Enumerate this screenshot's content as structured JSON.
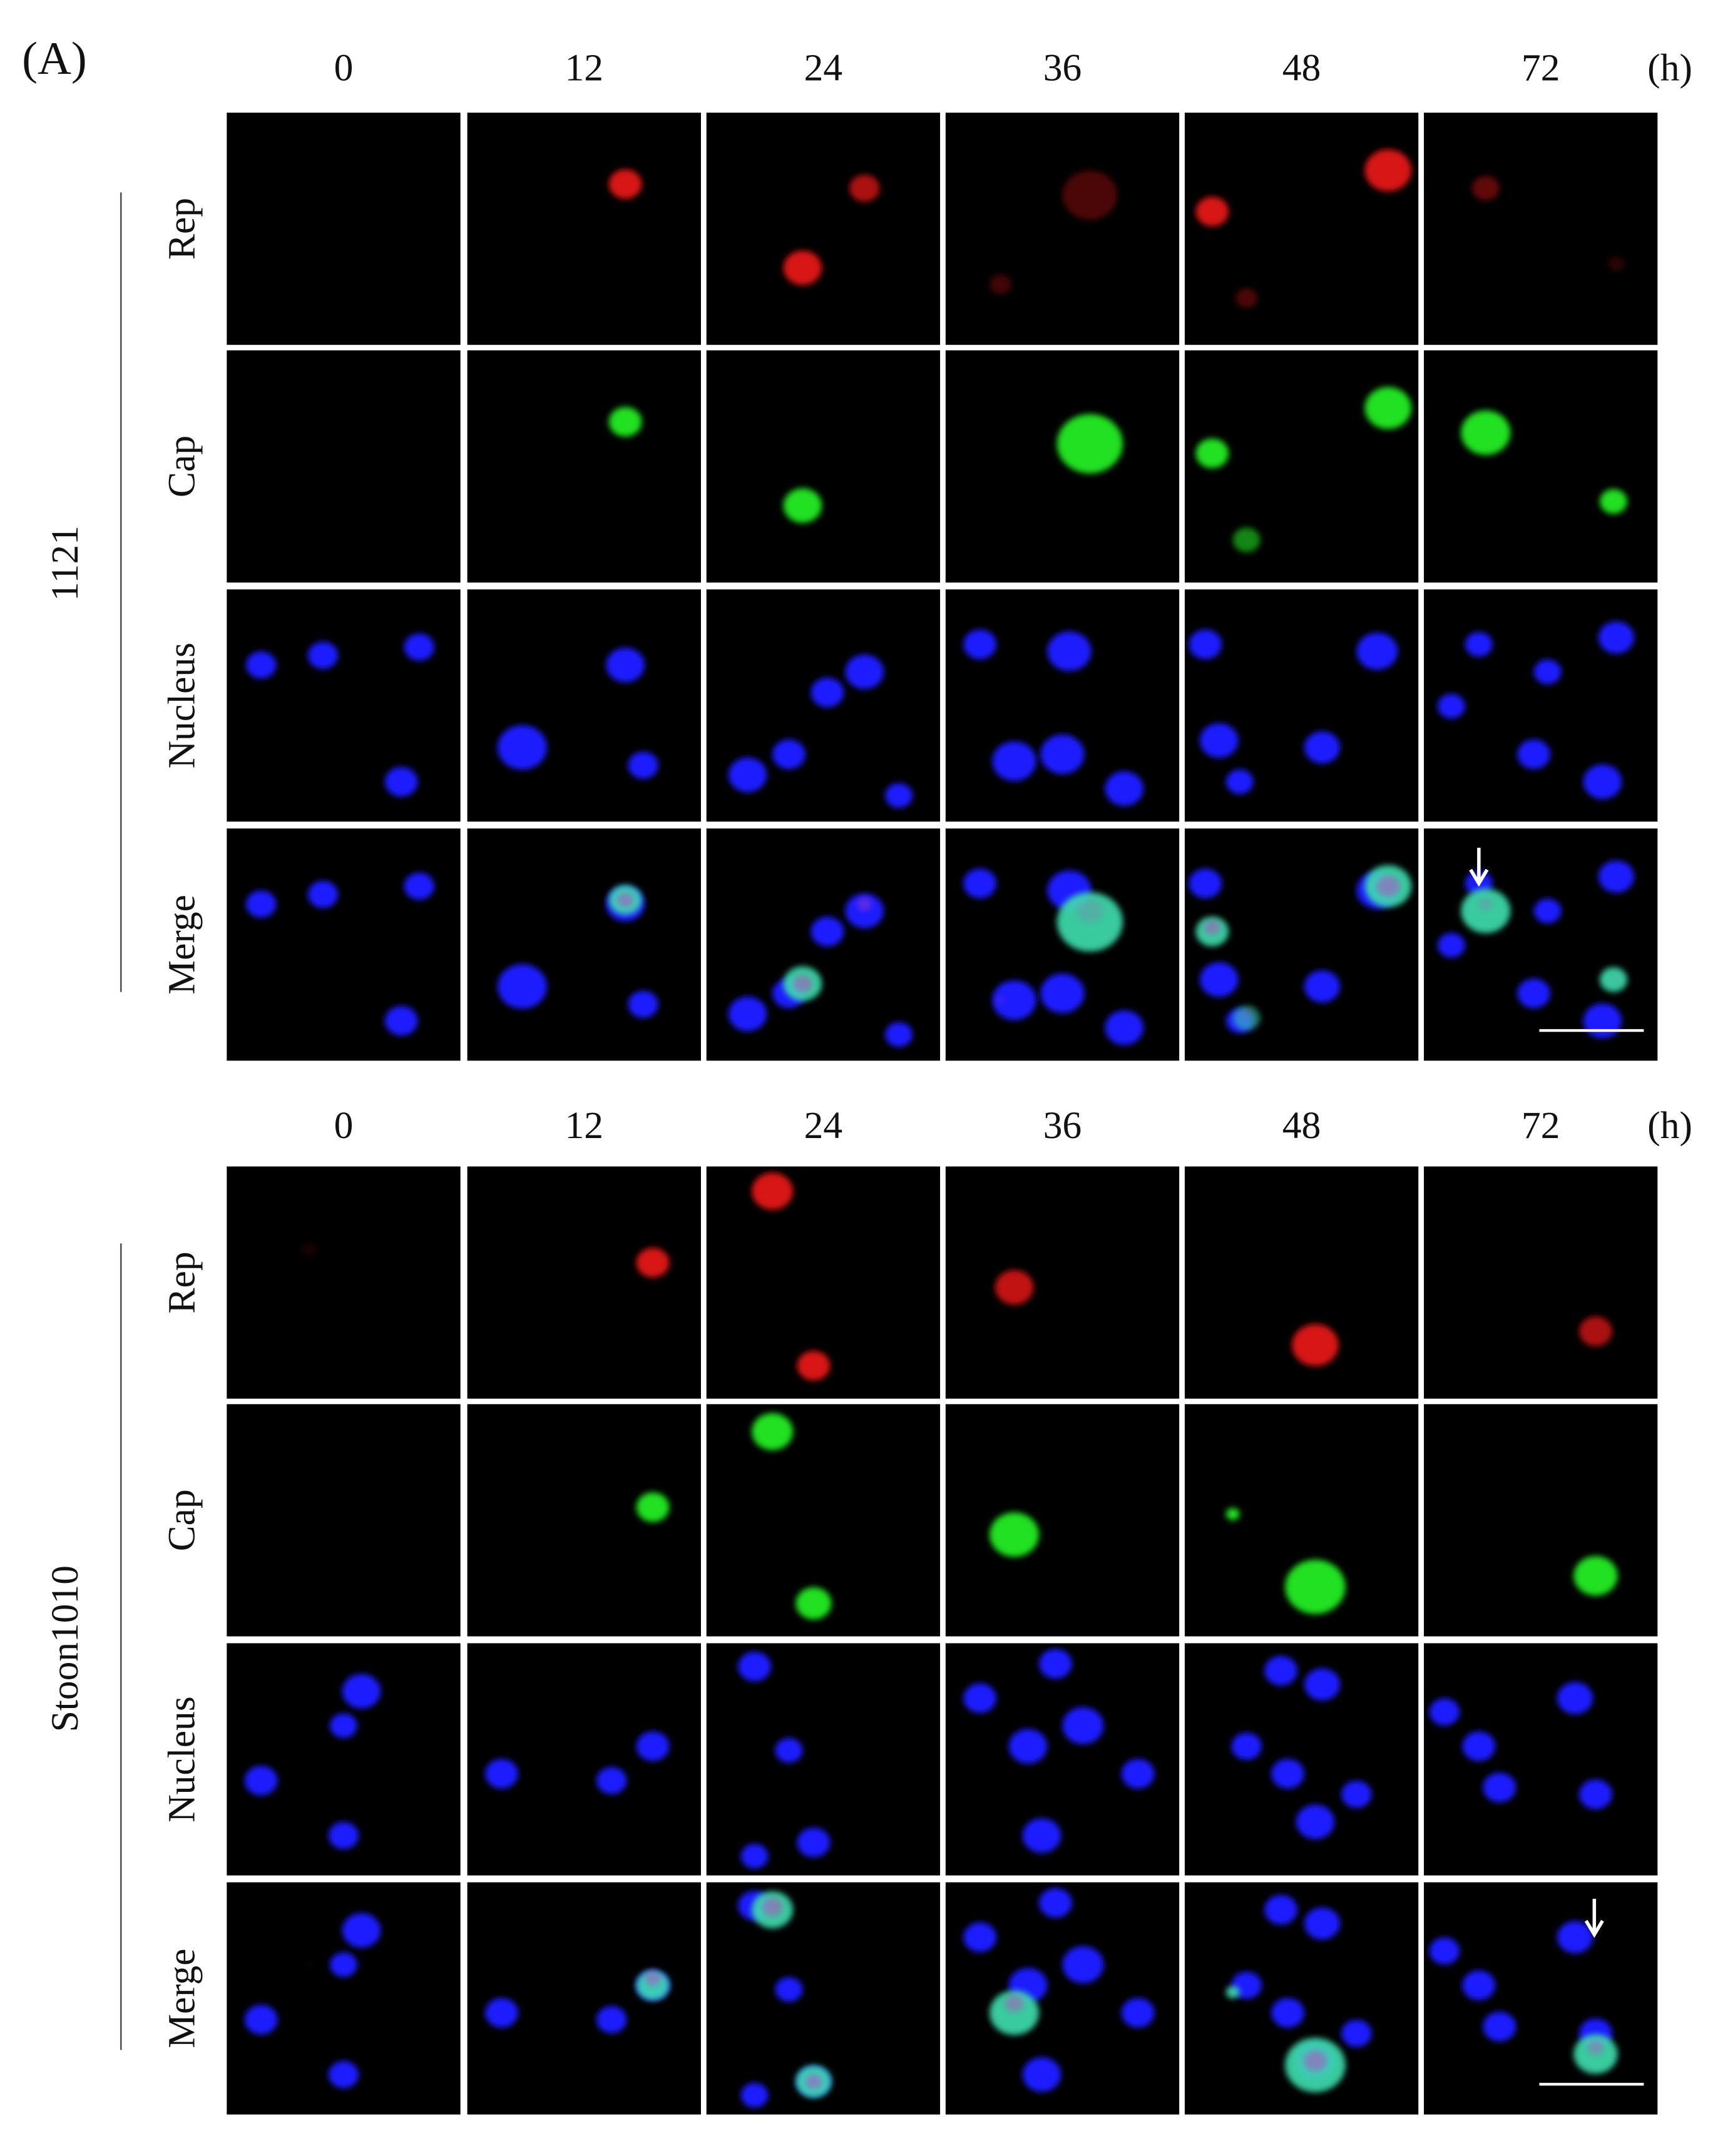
{
  "figure_label": "(A)",
  "panels": [
    {
      "group": "1121",
      "times": [
        "0",
        "12",
        "24",
        "36",
        "48",
        "72"
      ],
      "unit": "(h)",
      "rows": [
        "Rep",
        "Cap",
        "Nucleus",
        "Merge"
      ]
    },
    {
      "group": "Stoon1010",
      "times": [
        "0",
        "12",
        "24",
        "36",
        "48",
        "72"
      ],
      "unit": "(h)",
      "rows": [
        "Rep",
        "Cap",
        "Nucleus",
        "Merge"
      ]
    }
  ]
}
